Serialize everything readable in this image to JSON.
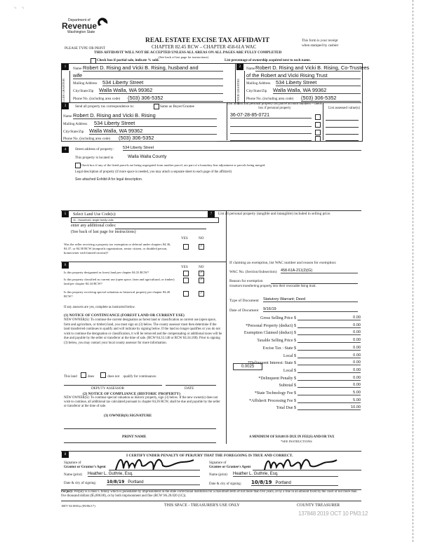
{
  "header": {
    "logo": {
      "line1": "Department of",
      "line2": "Revenue",
      "line3": "Washington State"
    },
    "title": "REAL ESTATE EXCISE TAX AFFIDAVIT",
    "chapter": "CHAPTER 82.45 RCW – CHAPTER 458-61A WAC",
    "please_type": "PLEASE TYPE OR PRINT",
    "receipt_note_1": "This form is your receipt",
    "receipt_note_2": "when stamped by cashier",
    "warning": "THIS AFFIDAVIT WILL NOT BE ACCEPTED UNLESS ALL AREAS ON ALL PAGES ARE FULLY COMPLETED",
    "see_back": "(See back of last page for instructions)",
    "partial_sale": "Check box if partial sale, indicate % sold.",
    "ownership_note": "List percentage of ownership acquired next to each name."
  },
  "seller": {
    "num": "1",
    "side_label": "SELLER GRANTOR",
    "name_label": "Name",
    "name_1": "Robert D. Rising and Vicki B. Rising, husband and",
    "name_2": "wife",
    "address_label": "Mailing Address",
    "address": "534 Liberty Street",
    "city_label": "City/State/Zip",
    "city": "Walla Walla, WA 99362",
    "phone_label": "Phone No. (including area code)",
    "phone": "(503) 306-5352"
  },
  "buyer": {
    "num": "2",
    "side_label": "BUYER GRANTEE",
    "name_label": "Name",
    "name_1": "Robert D. Rising and Vicki B. Rising, Co-Trustees",
    "name_2": "of the Robert and Vicki Rising Trust",
    "address_label": "Mailing Address",
    "address": "534 Liberty Street",
    "city_label": "City/State/Zip",
    "city": "Walla Walla, WA 99362",
    "phone_label": "Phone No. (including area code)",
    "phone": "(503) 306-5352"
  },
  "section3": {
    "num": "3",
    "send_label": "Send all property tax correspondence to:",
    "same_as": "Same as Buyer/Grantee",
    "name_label": "Name",
    "name": "Robert D. Rising and Vicki B. Rising",
    "address_label": "Mailing Address",
    "address": "534 Liberty Street",
    "city_label": "City/State/Zip",
    "city": "Walla Walla, WA 99362",
    "phone_label": "Phone No. (including area code)",
    "phone": "(503) 306-5352",
    "parcel_header": "List all real and personal property tax parcel account numbers – check box if personal property",
    "parcels": [
      "36-07-28-85-0721",
      "",
      "",
      ""
    ],
    "assessed_header": "List assessed value(s)"
  },
  "section4": {
    "num": "4",
    "street_label": "Street address of property:",
    "street": "534 Liberty Street",
    "located_label": "This property is located in",
    "county": "Walla Walla County",
    "segregated": "Check box if any of the listed parcels are being segregated from another parcel, are part of a boundary line adjustment or parcels being merged.",
    "legal_label": "Legal description of property (if more space is needed, you may attach a separate sheet to each page of the affidavit)",
    "legal": "See attached Exhibit A for legal description."
  },
  "section5": {
    "num": "5",
    "label": "Select Land Use Code(s):",
    "code": "11 - Household, single family units",
    "additional": "enter any additional codes:",
    "see_back": "(See back of last page for instructions)",
    "yes": "YES",
    "no": "NO",
    "question": "Was the seller receiving a property tax exemption or deferral under chapters 84.36, 84.37, or 84.38 RCW (nonprofit organization, senior citizen, or disabled person, homeowner with limited income)?",
    "answer": "NO"
  },
  "section6": {
    "num": "6",
    "yes": "YES",
    "no": "NO",
    "questions": [
      {
        "text": "Is this property designated as forest land per chapter 84.33 RCW?",
        "answer": "NO"
      },
      {
        "text": "Is this property classified as current use (open space, farm and agricultural, or timber) land per chapter 84.34 RCW?",
        "answer": "NO"
      },
      {
        "text": "Is this property receiving special valuation as historical property per chapter 84.26 RCW?",
        "answer": "NO"
      }
    ],
    "if_yes": "If any answers are yes, complete as instructed below.",
    "notice1_title": "(1) NOTICE OF CONTINUANCE (FOREST LAND OR CURRENT USE)",
    "notice1_body": "NEW OWNER(S): To continue the current designation as forest land or classification as current use (open space, farm and agriculture, or timber) land, you must sign on (3) below. The county assessor must then determine if the land transferred continues to qualify and will indicate by signing below. If the land no longer qualifies or you do not wish to continue the designation or classification, it will be removed and the compensating or additional taxes will be due and payable by the seller or transferor at the time of sale. (RCW 84.33.140 or RCW 84.34.108). Prior to signing (3) below, you may contact your local county assessor for more information.",
    "this_land": "This land",
    "does": "does",
    "does_not": "does not",
    "qualify": "qualify for continuance.",
    "deputy_assessor": "DEPUTY ASSESSOR",
    "date": "DATE",
    "notice2_title": "(2) NOTICE OF COMPLIANCE (HISTORIC PROPERTY)",
    "notice2_body": "NEW OWNER(S): To continue special valuation as historic property, sign (3) below. If the new owner(s) does not wish to continue, all additional tax calculated pursuant to chapter 84.26 RCW, shall be due and payable by the seller or transferor at the time of sale.",
    "owner_sig": "(3) OWNER(S) SIGNATURE",
    "print_name": "PRINT NAME"
  },
  "section7": {
    "num": "7",
    "personal_property": "List all personal property (tangible and intangible) included in selling price.",
    "exemption_label": "If claiming an exemption, list WAC number and reason for exemption:",
    "wac_label": "WAC No. (Section/Subsection)",
    "wac": "458-61A-211(2)(G)",
    "reason_label": "Reason for exemption",
    "reason": "Grantors transferring property into their revocable living trust.",
    "doc_type_label": "Type of Document",
    "doc_type": "Statutory Warrant; Deed",
    "doc_date_label": "Date of Document",
    "doc_date": "9/16/19",
    "rate": "0.0025",
    "fees": [
      {
        "label": "Gross Selling Price $",
        "value": "0.00"
      },
      {
        "label": "*Personal Property (deduct) $",
        "value": "0.00"
      },
      {
        "label": "Exemption Claimed (deduct) $",
        "value": "0.00"
      },
      {
        "label": "Taxable Selling Price $",
        "value": "0.00"
      },
      {
        "label": "Excise Tax : State $",
        "value": "0.00"
      },
      {
        "label": "Local $",
        "value": "0.00"
      },
      {
        "label": "*Delinquent Interest: State $",
        "value": "0.00"
      },
      {
        "label": "Local $",
        "value": "0.00"
      },
      {
        "label": "*Delinquent Penalty $",
        "value": "0.00"
      },
      {
        "label": "Subtotal $",
        "value": "0.00"
      },
      {
        "label": "*State Technology Fee $",
        "value": "5.00"
      },
      {
        "label": "*Affidavit Processing Fee $",
        "value": "5.00"
      },
      {
        "label": "Total Due $",
        "value": "10.00"
      }
    ],
    "minimum": "A MINIMUM OF $10.00 IS DUE IN FEE(S) AND/OR TAX",
    "see_instructions": "*SEE INSTRUCTIONS"
  },
  "section8": {
    "num": "8",
    "certify": "I CERTIFY UNDER PENALTY OF PERJURY THAT THE FOREGOING IS TRUE AND CORRECT.",
    "grantor_sig_label_1": "Signature of",
    "grantor_sig_label_2": "Grantor or Grantor's Agent",
    "grantee_sig_label_1": "Signature of",
    "grantee_sig_label_2": "Grantee or Grantee's Agent",
    "name_label": "Name (print)",
    "grantor_name": "Heather L. Guthrie, Esq.",
    "grantee_name": "Heather L. Guthrie, Esq.",
    "date_label": "Date & city of signing:",
    "grantor_date": "10/8/19",
    "grantor_city": "Portland",
    "grantee_date": "10/8/19",
    "grantee_city": "Portland"
  },
  "footer": {
    "perjury_bold": "Perjury:",
    "perjury": "Perjury is a class C felony which is punishable by imprisonment in the state correctional institution for a maximum term of not more than five years, or by a fine in an amount fixed by the court of not more than five thousand dollars ($5,000.00), or by both imprisonment and fine (RCW 9A.20.020 (1C)).",
    "form_no": "REV 84 0001a (09/06/17)",
    "treasurer_use": "THIS SPACE - TREASURER'S USE ONLY",
    "county_treasurer": "COUNTY TREASURER",
    "stamp": "137848 2019 OCT 10 PM3:12"
  }
}
